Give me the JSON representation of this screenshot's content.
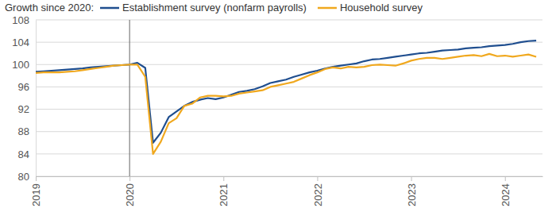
{
  "chart_data": {
    "type": "line",
    "title": "Growth since 2020:",
    "x": [
      2019,
      2019.083,
      2019.167,
      2019.25,
      2019.333,
      2019.417,
      2019.5,
      2019.583,
      2019.667,
      2019.75,
      2019.833,
      2019.917,
      2020,
      2020.083,
      2020.167,
      2020.25,
      2020.333,
      2020.417,
      2020.5,
      2020.583,
      2020.667,
      2020.75,
      2020.833,
      2020.917,
      2021,
      2021.083,
      2021.167,
      2021.25,
      2021.333,
      2021.417,
      2021.5,
      2021.583,
      2021.667,
      2021.75,
      2021.833,
      2021.917,
      2022,
      2022.083,
      2022.167,
      2022.25,
      2022.333,
      2022.417,
      2022.5,
      2022.583,
      2022.667,
      2022.75,
      2022.833,
      2022.917,
      2023,
      2023.083,
      2023.167,
      2023.25,
      2023.333,
      2023.417,
      2023.5,
      2023.583,
      2023.667,
      2023.75,
      2023.833,
      2023.917,
      2024,
      2024.083,
      2024.167,
      2024.25,
      2024.333
    ],
    "series": [
      {
        "name": "Establishment survey (nonfarm payrolls)",
        "color": "#1f4e8f",
        "values": [
          98.7,
          98.8,
          98.9,
          99.0,
          99.1,
          99.2,
          99.3,
          99.5,
          99.6,
          99.7,
          99.8,
          99.9,
          100,
          100.3,
          99.4,
          86.0,
          87.8,
          90.6,
          91.6,
          92.6,
          93.3,
          93.7,
          94.0,
          93.8,
          94.1,
          94.6,
          95.1,
          95.3,
          95.6,
          96.1,
          96.7,
          97.0,
          97.3,
          97.8,
          98.2,
          98.6,
          98.9,
          99.3,
          99.6,
          99.8,
          100,
          100.2,
          100.6,
          100.9,
          101.0,
          101.2,
          101.4,
          101.6,
          101.8,
          102.0,
          102.1,
          102.3,
          102.5,
          102.6,
          102.7,
          102.9,
          103.0,
          103.1,
          103.3,
          103.4,
          103.5,
          103.7,
          104.0,
          104.2,
          104.3
        ]
      },
      {
        "name": "Household survey",
        "color": "#f0a81e",
        "values": [
          98.5,
          98.6,
          98.6,
          98.6,
          98.7,
          98.8,
          99.0,
          99.2,
          99.4,
          99.6,
          99.8,
          99.9,
          100,
          100,
          97.8,
          84.0,
          86.2,
          89.5,
          90.4,
          92.6,
          93.0,
          94.1,
          94.4,
          94.4,
          94.3,
          94.4,
          94.8,
          95.0,
          95.2,
          95.4,
          96.0,
          96.3,
          96.6,
          96.9,
          97.5,
          98.1,
          98.6,
          99.2,
          99.5,
          99.3,
          99.6,
          99.5,
          99.6,
          99.9,
          100,
          99.9,
          99.8,
          100.2,
          100.7,
          101.0,
          101.2,
          101.2,
          101.0,
          101.2,
          101.4,
          101.6,
          101.7,
          101.5,
          101.9,
          101.5,
          101.6,
          101.4,
          101.6,
          101.8,
          101.4
        ]
      }
    ],
    "xlim": [
      2019,
      2024.4
    ],
    "xticks": [
      2019,
      2020,
      2021,
      2022,
      2023,
      2024
    ],
    "ylim": [
      80,
      108
    ],
    "yticks": [
      80,
      84,
      88,
      92,
      96,
      100,
      104,
      108
    ],
    "vlines": [
      2020
    ],
    "grid": true,
    "legend": "top"
  }
}
